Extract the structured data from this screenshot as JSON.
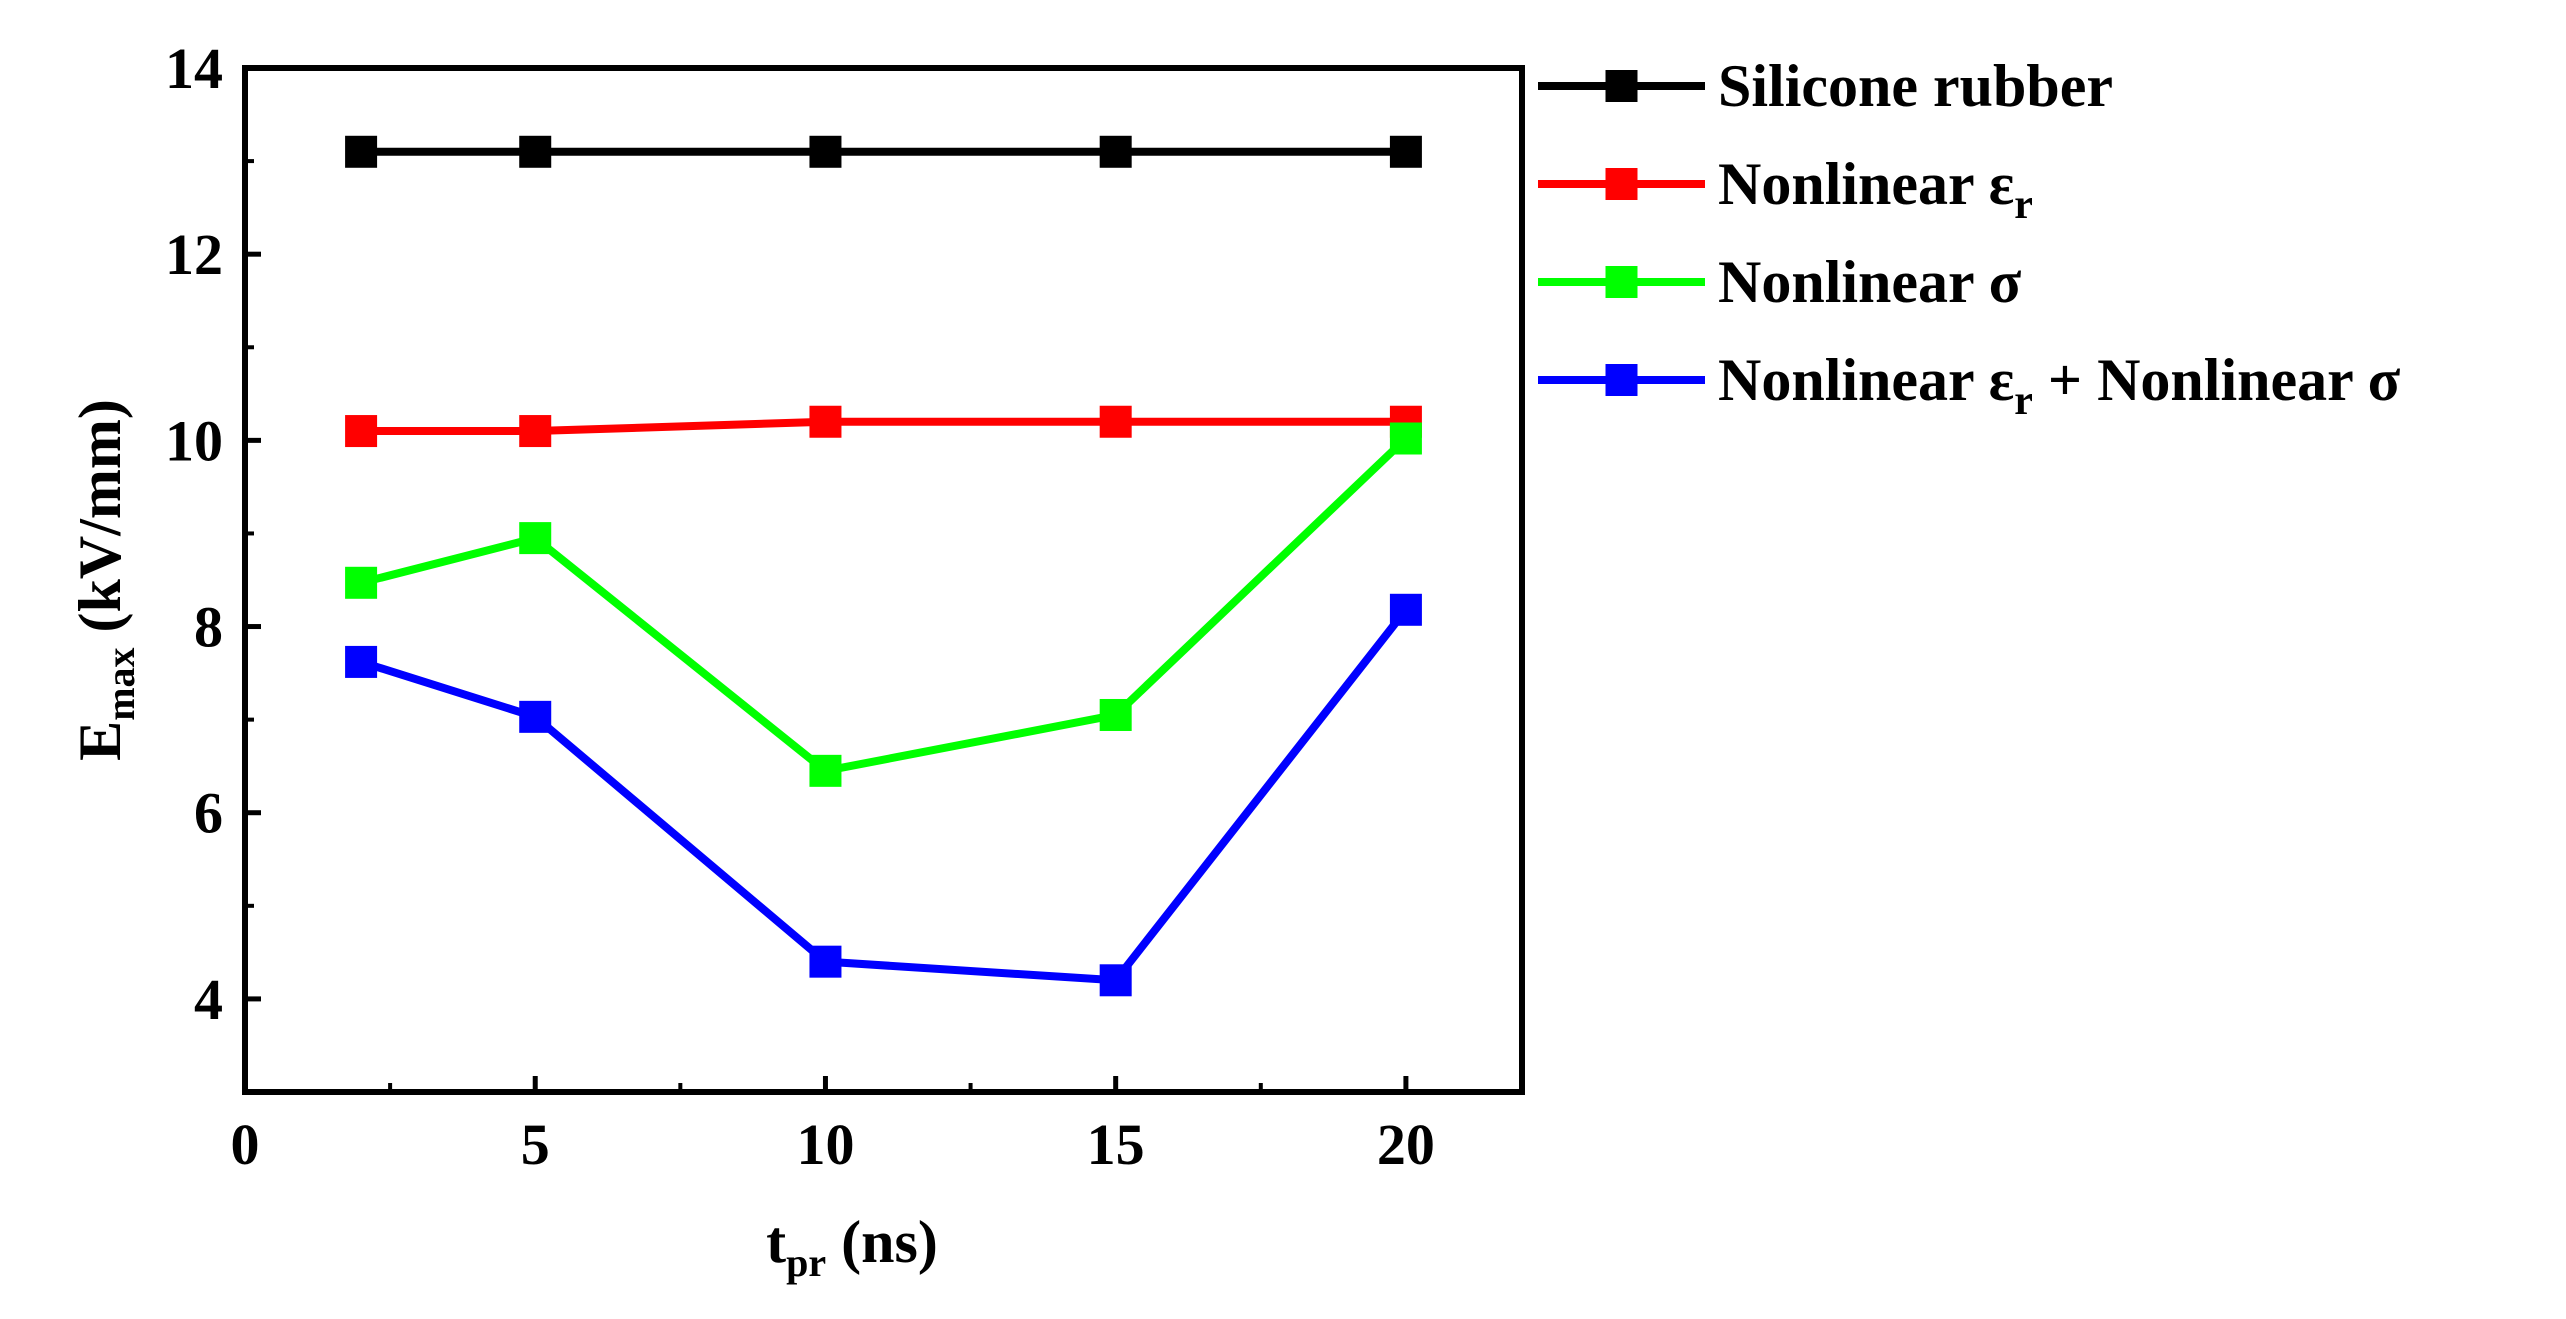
{
  "chart_data": {
    "type": "line",
    "x": [
      2,
      5,
      10,
      15,
      20
    ],
    "xlim": [
      0,
      22
    ],
    "ylim": [
      3,
      14
    ],
    "xticks": [
      "0",
      "5",
      "10",
      "15",
      "20"
    ],
    "yticks": [
      "4",
      "6",
      "8",
      "10",
      "12",
      "14"
    ],
    "xlabel": {
      "main": "t",
      "sub": "pr",
      "unit": " (ns)"
    },
    "ylabel": {
      "main": "E",
      "sub": "max",
      "unit": " (kV/mm)"
    },
    "legend_position": "outside-right",
    "series": [
      {
        "name": "Silicone rubber",
        "label_parts": [
          {
            "t": "Silicone rubber"
          }
        ],
        "color": "#000000",
        "values": [
          13.1,
          13.1,
          13.1,
          13.1,
          13.1
        ]
      },
      {
        "name": "Nonlinear εr",
        "label_parts": [
          {
            "t": "Nonlinear ε"
          },
          {
            "t": "r",
            "sub": true
          }
        ],
        "color": "#ff0000",
        "values": [
          10.1,
          10.1,
          10.2,
          10.2,
          10.2
        ]
      },
      {
        "name": "Nonlinear σ",
        "label_parts": [
          {
            "t": "Nonlinear σ"
          }
        ],
        "color": "#00ff00",
        "values": [
          8.47,
          8.95,
          6.45,
          7.05,
          10.02
        ]
      },
      {
        "name": "Nonlinear εr + Nonlinear σ",
        "label_parts": [
          {
            "t": "Nonlinear ε"
          },
          {
            "t": "r",
            "sub": true
          },
          {
            "t": " + Nonlinear σ"
          }
        ],
        "color": "#0000ff",
        "values": [
          7.62,
          7.03,
          4.4,
          4.2,
          8.18
        ]
      }
    ]
  }
}
